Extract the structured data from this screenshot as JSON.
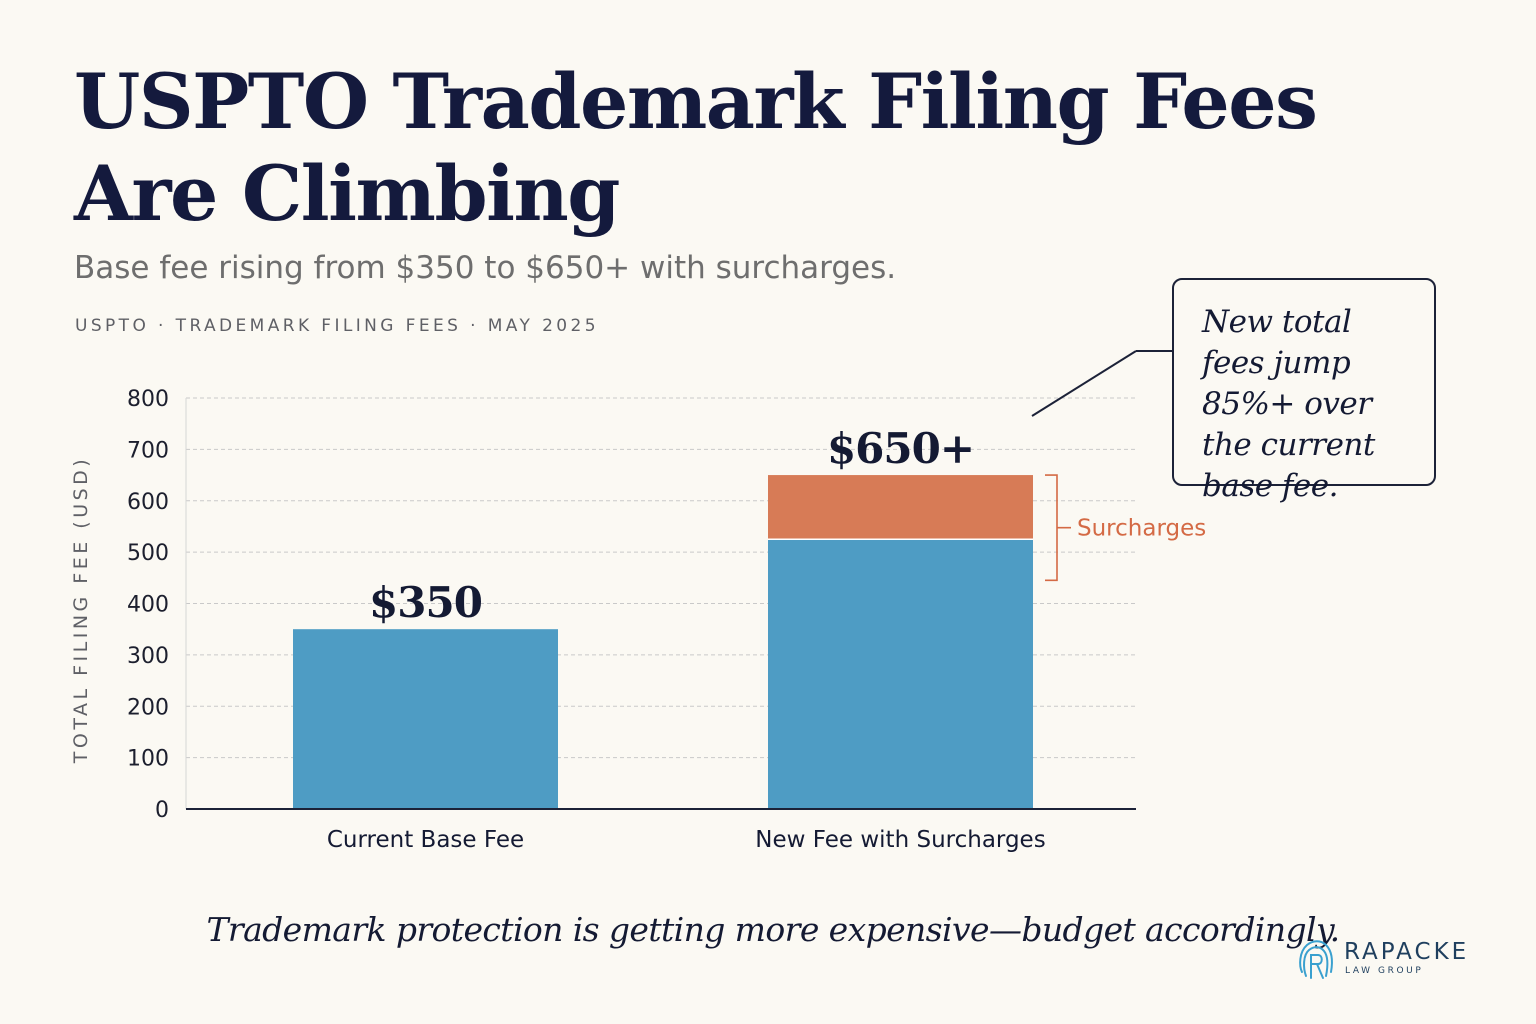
{
  "header": {
    "title": "USPTO Trademark Filing Fees Are Climbing",
    "subtitle": "Base fee rising from $350 to $650+ with surcharges.",
    "source_line": "USPTO · TRADEMARK FILING FEES · MAY 2025"
  },
  "chart_data": {
    "type": "bar",
    "stacked": true,
    "categories": [
      "Current Base Fee",
      "New Fee with Surcharges"
    ],
    "series": [
      {
        "name": "",
        "values": [
          350,
          525
        ],
        "color": "#4e9cc4"
      },
      {
        "name": "Surcharges",
        "values": [
          0,
          125
        ],
        "color": "#d77b56"
      }
    ],
    "data_labels": [
      "$350",
      "$650+"
    ],
    "ylabel": "TOTAL FILING FEE (USD)",
    "xlabel": "",
    "ylim": [
      0,
      800
    ],
    "yticks": [
      0,
      100,
      200,
      300,
      400,
      500,
      600,
      700,
      800
    ],
    "grid": true,
    "grid_style": "dashed",
    "bracket_label": "Surcharges",
    "bracket_color": "#d46a45"
  },
  "callout": {
    "text": "New total fees jump 85%+ over the current base fee."
  },
  "footer": {
    "note": "Trademark protection is getting more expensive—budget accordingly."
  },
  "logo": {
    "name": "RAPACKE",
    "sub": "LAW GROUP",
    "icon": "fingerprint-r-icon",
    "color": "#3aa0cf"
  }
}
